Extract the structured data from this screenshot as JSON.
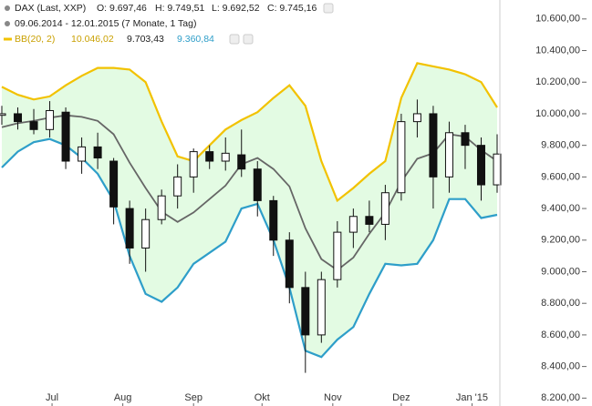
{
  "chart_data": {
    "type": "candlestick",
    "header": {
      "symbol": "DAX (Last, XXP)",
      "ohlc_text": [
        "O: 9.697,46",
        "H: 9.749,51",
        "L: 9.692,52",
        "C: 9.745,16"
      ],
      "period": "09.06.2014 - 12.01.2015 (7 Monate, 1 Tag)",
      "indicator": "BB(20, 2)",
      "indicator_values": [
        "10.046,02",
        "9.703,43",
        "9.360,84"
      ]
    },
    "x": [
      "2014-06-09",
      "2014-06-16",
      "2014-06-23",
      "2014-06-30",
      "2014-07-07",
      "2014-07-14",
      "2014-07-21",
      "2014-07-28",
      "2014-08-04",
      "2014-08-11",
      "2014-08-18",
      "2014-08-25",
      "2014-09-01",
      "2014-09-08",
      "2014-09-15",
      "2014-09-22",
      "2014-09-29",
      "2014-10-06",
      "2014-10-13",
      "2014-10-20",
      "2014-10-27",
      "2014-11-03",
      "2014-11-10",
      "2014-11-17",
      "2014-11-24",
      "2014-12-01",
      "2014-12-08",
      "2014-12-15",
      "2014-12-22",
      "2014-12-29",
      "2015-01-05",
      "2015-01-12"
    ],
    "open": [
      9990,
      10000,
      9950,
      9900,
      10010,
      9700,
      9790,
      9700,
      9400,
      9150,
      9330,
      9480,
      9600,
      9760,
      9700,
      9740,
      9650,
      9450,
      9200,
      8900,
      8600,
      8950,
      9250,
      9350,
      9300,
      9500,
      9950,
      10000,
      9600,
      9880,
      9800,
      9550
    ],
    "high": [
      10050,
      10040,
      10030,
      10080,
      10040,
      9850,
      9880,
      9720,
      9450,
      9400,
      9520,
      9680,
      9780,
      9800,
      9850,
      9900,
      9700,
      9480,
      9250,
      9000,
      9000,
      9320,
      9400,
      9450,
      9550,
      10000,
      10090,
      10050,
      9950,
      9930,
      9850,
      9870
    ],
    "low": [
      9930,
      9900,
      9870,
      9850,
      9650,
      9620,
      9650,
      9300,
      9050,
      9000,
      9300,
      9400,
      9500,
      9650,
      9640,
      9600,
      9350,
      9100,
      8800,
      8360,
      8550,
      8900,
      9150,
      9250,
      9200,
      9450,
      9850,
      9400,
      9500,
      9650,
      9450,
      9500
    ],
    "close": [
      10000,
      9950,
      9900,
      10020,
      9700,
      9790,
      9720,
      9410,
      9150,
      9330,
      9480,
      9600,
      9760,
      9700,
      9750,
      9650,
      9450,
      9200,
      8900,
      8600,
      8950,
      9250,
      9350,
      9300,
      9500,
      9950,
      10000,
      9600,
      9880,
      9800,
      9550,
      9745
    ],
    "series": [
      {
        "name": "upper",
        "color": "#f2c200",
        "values": [
          10170,
          10120,
          10090,
          10110,
          10180,
          10240,
          10290,
          10290,
          10280,
          10200,
          9950,
          9730,
          9700,
          9800,
          9900,
          9960,
          10010,
          10100,
          10180,
          10050,
          9700,
          9450,
          9530,
          9620,
          9700,
          10100,
          10320,
          10300,
          10280,
          10250,
          10200,
          10040
        ]
      },
      {
        "name": "middle",
        "color": "#666666",
        "values": [
          9915,
          9940,
          9955,
          9975,
          9990,
          9980,
          9955,
          9870,
          9690,
          9530,
          9380,
          9315,
          9375,
          9460,
          9545,
          9680,
          9720,
          9650,
          9540,
          9275,
          9080,
          9010,
          9090,
          9240,
          9375,
          9570,
          9715,
          9750,
          9870,
          9855,
          9770,
          9700
        ]
      },
      {
        "name": "lower",
        "color": "#2e9ec9",
        "values": [
          9660,
          9760,
          9820,
          9840,
          9800,
          9720,
          9620,
          9450,
          9100,
          8860,
          8810,
          8900,
          9050,
          9120,
          9190,
          9400,
          9430,
          9200,
          8900,
          8500,
          8460,
          8570,
          8650,
          8860,
          9050,
          9040,
          9050,
          9200,
          9460,
          9460,
          9340,
          9360
        ]
      }
    ],
    "band_fill": "#e3fbe3",
    "xlim": [
      "2014-06-09",
      "2015-01-12"
    ],
    "xticks": [
      {
        "value": "2014-07-01",
        "label": "Jul"
      },
      {
        "value": "2014-08-01",
        "label": "Aug"
      },
      {
        "value": "2014-09-01",
        "label": "Sep"
      },
      {
        "value": "2014-10-01",
        "label": "Okt"
      },
      {
        "value": "2014-11-01",
        "label": "Nov"
      },
      {
        "value": "2014-12-01",
        "label": "Dez"
      },
      {
        "value": "2015-01-01",
        "label": "Jan '15"
      }
    ],
    "ylim": [
      8150,
      10720
    ],
    "yticks": [
      {
        "value": 8200,
        "label": "8.200,00"
      },
      {
        "value": 8400,
        "label": "8.400,00"
      },
      {
        "value": 8600,
        "label": "8.600,00"
      },
      {
        "value": 8800,
        "label": "8.800,00"
      },
      {
        "value": 9000,
        "label": "9.000,00"
      },
      {
        "value": 9200,
        "label": "9.200,00"
      },
      {
        "value": 9400,
        "label": "9.400,00"
      },
      {
        "value": 9600,
        "label": "9.600,00"
      },
      {
        "value": 9800,
        "label": "9.800,00"
      },
      {
        "value": 10000,
        "label": "10.000,00"
      },
      {
        "value": 10200,
        "label": "10.200,00"
      },
      {
        "value": 10400,
        "label": "10.400,00"
      },
      {
        "value": 10600,
        "label": "10.600,00"
      }
    ]
  }
}
